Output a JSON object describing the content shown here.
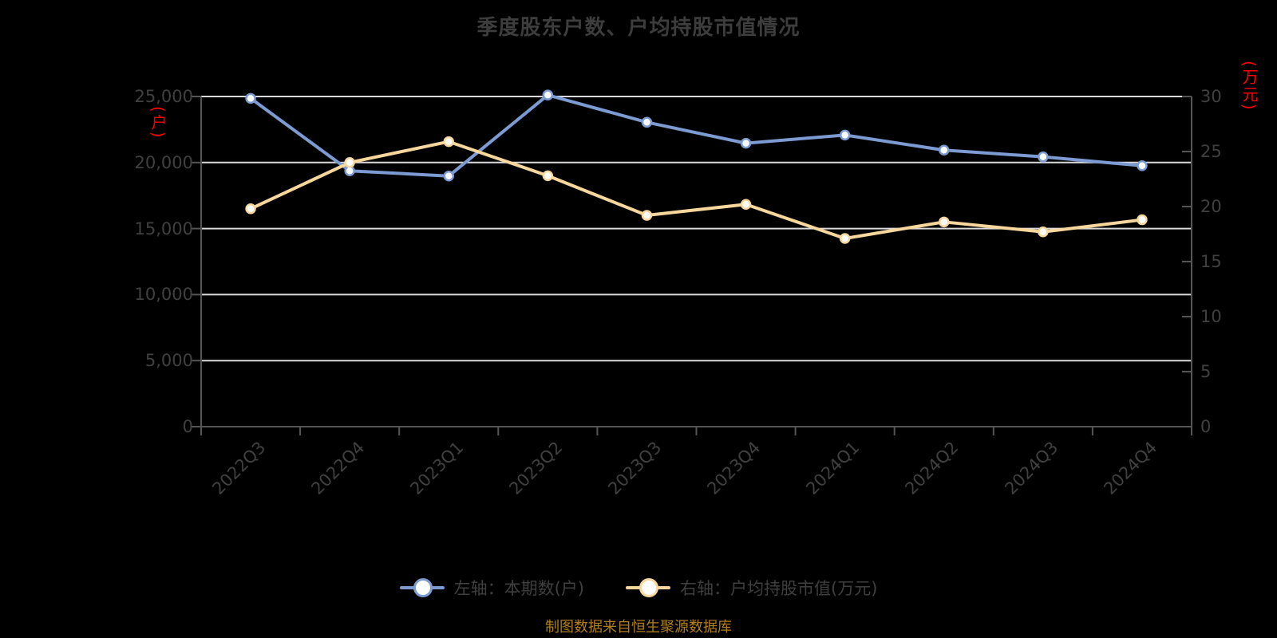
{
  "title": "季度股东户数、户均持股市值情况",
  "footer": "制图数据来自恒生聚源数据库",
  "legend": [
    {
      "label": "左轴：本期数(户)",
      "color": "#7b9bd2"
    },
    {
      "label": "右轴：户均持股市值(万元)",
      "color": "#f8d79c"
    }
  ],
  "colors": {
    "background": "#000000",
    "title_text": "#3d3d3d",
    "axis_text": "#404040",
    "axis_line": "#555555",
    "gridline": "#dadada",
    "series_blue": "#7b9bd2",
    "series_yellow": "#f8d79c",
    "marker_fill": "#ffffff",
    "unit_label_red": "#ff0000",
    "footer_text": "#b07f1c"
  },
  "chart_data": {
    "type": "line",
    "title": "季度股东户数、户均持股市值情况",
    "categories": [
      "2022Q3",
      "2022Q4",
      "2023Q1",
      "2023Q2",
      "2023Q3",
      "2023Q4",
      "2024Q1",
      "2024Q2",
      "2024Q3",
      "2024Q4"
    ],
    "series": [
      {
        "name": "左轴：本期数(户)",
        "axis": "left",
        "color": "#7b9bd2",
        "values": [
          24860,
          19370,
          18980,
          25110,
          23050,
          21460,
          22080,
          20940,
          20430,
          19760
        ]
      },
      {
        "name": "右轴：户均持股市值(万元)",
        "axis": "right",
        "color": "#f8d79c",
        "values": [
          19.8,
          24.0,
          25.9,
          22.8,
          19.2,
          20.2,
          17.1,
          18.6,
          17.7,
          18.8
        ]
      }
    ],
    "left_axis": {
      "label": "(户)",
      "min": 0,
      "max": 25000,
      "ticks": [
        "25,000",
        "20,000",
        "15,000",
        "10,000",
        "5,000",
        "0"
      ]
    },
    "right_axis": {
      "label": "(万元)",
      "min": 0,
      "max": 30,
      "ticks": [
        "30",
        "25",
        "20",
        "15",
        "10",
        "5",
        "0"
      ]
    },
    "grid": true,
    "legend_position": "bottom"
  }
}
